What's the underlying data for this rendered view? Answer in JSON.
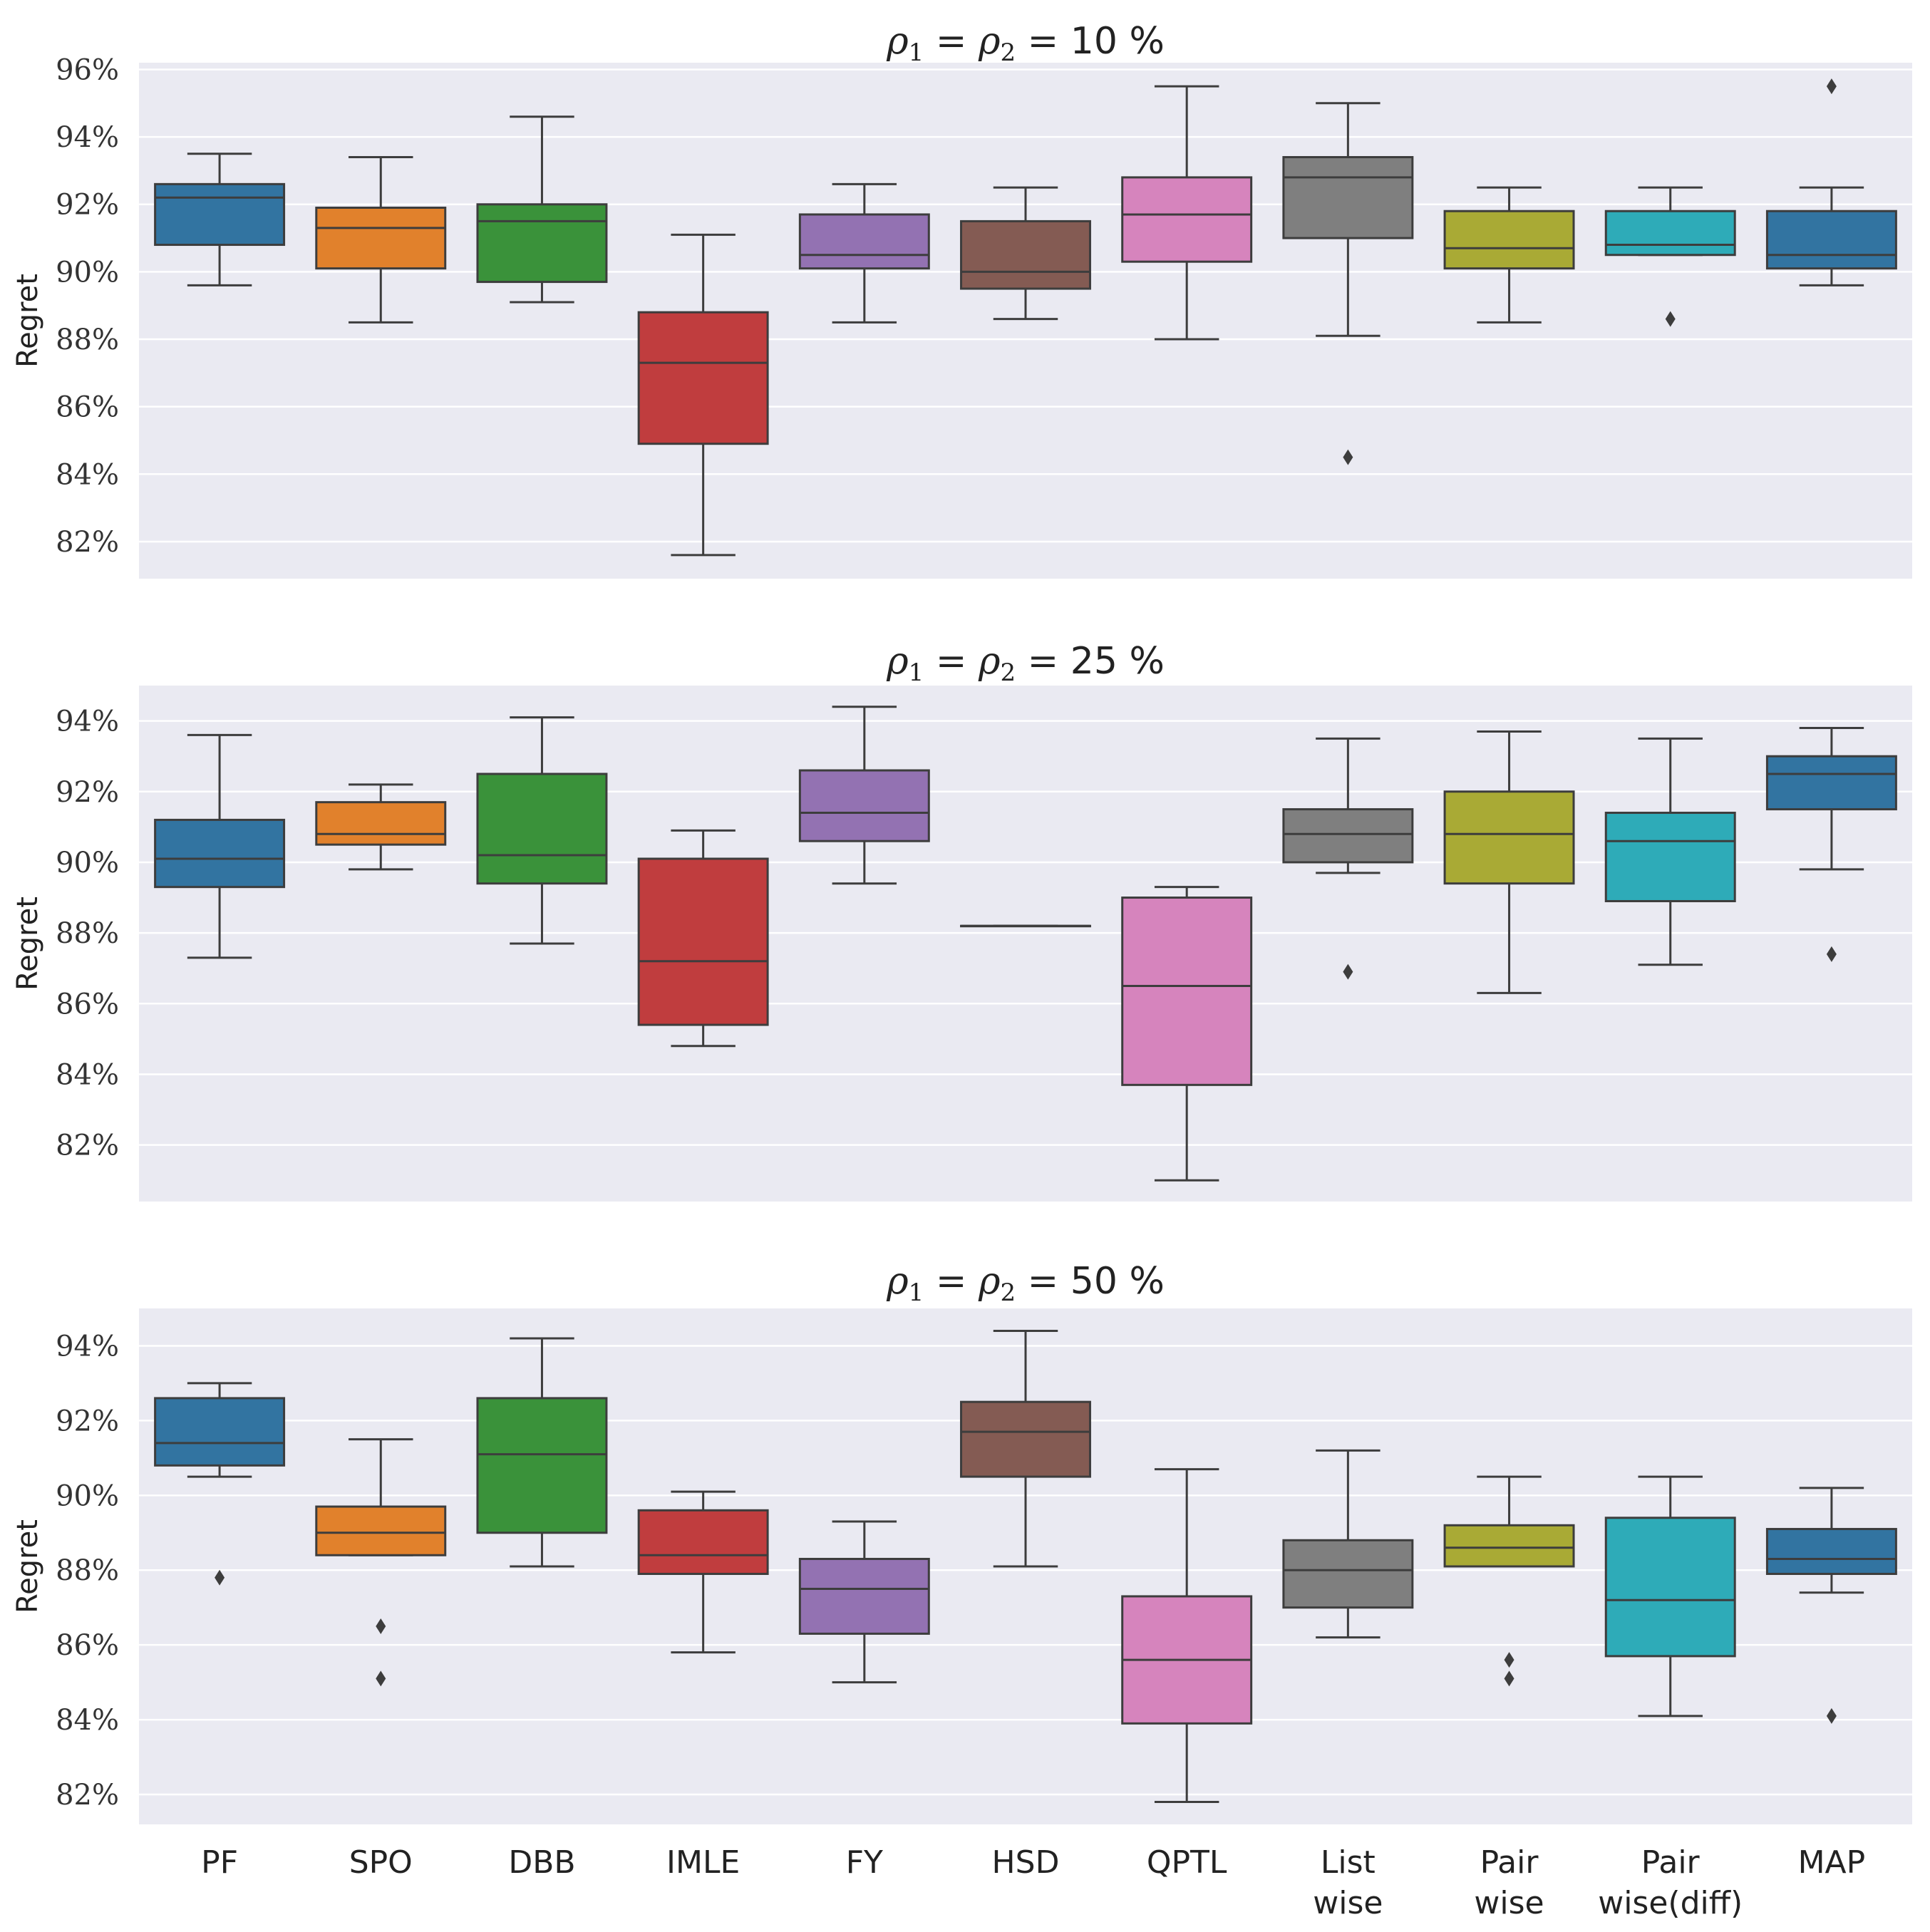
{
  "chart_data": [
    {
      "type": "box",
      "title": "ρ1 = ρ2 = 10 %",
      "title_parts": {
        "rho1": "ρ",
        "sub1": "1",
        "eq1": "=",
        "rho2": "ρ",
        "sub2": "2",
        "eq2": "=",
        "value": "10 %"
      },
      "ylabel": "Regret",
      "ylim": [
        80.9,
        96.2
      ],
      "yticks": [
        82,
        84,
        86,
        88,
        90,
        92,
        94,
        96
      ],
      "ytick_labels": [
        "82%",
        "84%",
        "86%",
        "88%",
        "90%",
        "92%",
        "94%",
        "96%"
      ],
      "grid": true,
      "boxes": [
        {
          "method": "PF",
          "color": "#3274a1",
          "min": 89.6,
          "q1": 90.8,
          "median": 92.2,
          "q3": 92.6,
          "max": 93.5,
          "outliers": []
        },
        {
          "method": "SPO",
          "color": "#e1812c",
          "min": 88.5,
          "q1": 90.1,
          "median": 91.3,
          "q3": 91.9,
          "max": 93.4,
          "outliers": []
        },
        {
          "method": "DBB",
          "color": "#3a923a",
          "min": 89.1,
          "q1": 89.7,
          "median": 91.5,
          "q3": 92.0,
          "max": 94.6,
          "outliers": []
        },
        {
          "method": "IMLE",
          "color": "#c03d3e",
          "min": 81.6,
          "q1": 84.9,
          "median": 87.3,
          "q3": 88.8,
          "max": 91.1,
          "outliers": []
        },
        {
          "method": "FY",
          "color": "#9372b2",
          "min": 88.5,
          "q1": 90.1,
          "median": 90.5,
          "q3": 91.7,
          "max": 92.6,
          "outliers": []
        },
        {
          "method": "HSD",
          "color": "#845b53",
          "min": 88.6,
          "q1": 89.5,
          "median": 90.0,
          "q3": 91.5,
          "max": 92.5,
          "outliers": []
        },
        {
          "method": "QPTL",
          "color": "#d684bd",
          "min": 88.0,
          "q1": 90.3,
          "median": 91.7,
          "q3": 92.8,
          "max": 95.5,
          "outliers": []
        },
        {
          "method": "Listwise",
          "color": "#7f7f7f",
          "min": 88.1,
          "q1": 91.0,
          "median": 92.8,
          "q3": 93.4,
          "max": 95.0,
          "outliers": [
            84.5
          ]
        },
        {
          "method": "Pairwise",
          "color": "#a9aa35",
          "min": 88.5,
          "q1": 90.1,
          "median": 90.7,
          "q3": 91.8,
          "max": 92.5,
          "outliers": []
        },
        {
          "method": "Pairwise(diff)",
          "color": "#2eabb8",
          "min": 90.5,
          "q1": 90.5,
          "median": 90.8,
          "q3": 91.8,
          "max": 92.5,
          "outliers": [
            88.6
          ]
        },
        {
          "method": "MAP",
          "color": "#3274a1",
          "min": 89.6,
          "q1": 90.1,
          "median": 90.5,
          "q3": 91.8,
          "max": 92.5,
          "outliers": [
            95.5
          ]
        }
      ]
    },
    {
      "type": "box",
      "title": "ρ1 = ρ2 = 25 %",
      "title_parts": {
        "rho1": "ρ",
        "sub1": "1",
        "eq1": "=",
        "rho2": "ρ",
        "sub2": "2",
        "eq2": "=",
        "value": "25 %"
      },
      "ylabel": "Regret",
      "ylim": [
        80.4,
        95.0
      ],
      "yticks": [
        82,
        84,
        86,
        88,
        90,
        92,
        94
      ],
      "ytick_labels": [
        "82%",
        "84%",
        "86%",
        "88%",
        "90%",
        "92%",
        "94%"
      ],
      "grid": true,
      "boxes": [
        {
          "method": "PF",
          "color": "#3274a1",
          "min": 87.3,
          "q1": 89.3,
          "median": 90.1,
          "q3": 91.2,
          "max": 93.6,
          "outliers": []
        },
        {
          "method": "SPO",
          "color": "#e1812c",
          "min": 89.8,
          "q1": 90.5,
          "median": 90.8,
          "q3": 91.7,
          "max": 92.2,
          "outliers": []
        },
        {
          "method": "DBB",
          "color": "#3a923a",
          "min": 87.7,
          "q1": 89.4,
          "median": 90.2,
          "q3": 92.5,
          "max": 94.1,
          "outliers": []
        },
        {
          "method": "IMLE",
          "color": "#c03d3e",
          "min": 84.8,
          "q1": 85.4,
          "median": 87.2,
          "q3": 90.1,
          "max": 90.9,
          "outliers": []
        },
        {
          "method": "FY",
          "color": "#9372b2",
          "min": 89.4,
          "q1": 90.6,
          "median": 91.4,
          "q3": 92.6,
          "max": 94.4,
          "outliers": []
        },
        {
          "method": "HSD",
          "color": "#845b53",
          "min": 88.2,
          "q1": 88.2,
          "median": 88.2,
          "q3": 88.2,
          "max": 88.2,
          "outliers": []
        },
        {
          "method": "QPTL",
          "color": "#d684bd",
          "min": 81.0,
          "q1": 83.7,
          "median": 86.5,
          "q3": 89.0,
          "max": 89.3,
          "outliers": []
        },
        {
          "method": "Listwise",
          "color": "#7f7f7f",
          "min": 89.7,
          "q1": 90.0,
          "median": 90.8,
          "q3": 91.5,
          "max": 93.5,
          "outliers": [
            86.9
          ]
        },
        {
          "method": "Pairwise",
          "color": "#a9aa35",
          "min": 86.3,
          "q1": 89.4,
          "median": 90.8,
          "q3": 92.0,
          "max": 93.7,
          "outliers": []
        },
        {
          "method": "Pairwise(diff)",
          "color": "#2eabb8",
          "min": 87.1,
          "q1": 88.9,
          "median": 90.6,
          "q3": 91.4,
          "max": 93.5,
          "outliers": []
        },
        {
          "method": "MAP",
          "color": "#3274a1",
          "min": 89.8,
          "q1": 91.5,
          "median": 92.5,
          "q3": 93.0,
          "max": 93.8,
          "outliers": [
            87.4
          ]
        }
      ]
    },
    {
      "type": "box",
      "title": "ρ1 = ρ2 = 50 %",
      "title_parts": {
        "rho1": "ρ",
        "sub1": "1",
        "eq1": "=",
        "rho2": "ρ",
        "sub2": "2",
        "eq2": "=",
        "value": "50 %"
      },
      "ylabel": "Regret",
      "ylim": [
        81.2,
        95.0
      ],
      "yticks": [
        82,
        84,
        86,
        88,
        90,
        92,
        94
      ],
      "ytick_labels": [
        "82%",
        "84%",
        "86%",
        "88%",
        "90%",
        "92%",
        "94%"
      ],
      "grid": true,
      "boxes": [
        {
          "method": "PF",
          "color": "#3274a1",
          "min": 90.5,
          "q1": 90.8,
          "median": 91.4,
          "q3": 92.6,
          "max": 93.0,
          "outliers": [
            87.8
          ]
        },
        {
          "method": "SPO",
          "color": "#e1812c",
          "min": 88.4,
          "q1": 88.4,
          "median": 89.0,
          "q3": 89.7,
          "max": 91.5,
          "outliers": [
            86.5,
            85.1
          ]
        },
        {
          "method": "DBB",
          "color": "#3a923a",
          "min": 88.1,
          "q1": 89.0,
          "median": 91.1,
          "q3": 92.6,
          "max": 94.2,
          "outliers": []
        },
        {
          "method": "IMLE",
          "color": "#c03d3e",
          "min": 85.8,
          "q1": 87.9,
          "median": 88.4,
          "q3": 89.6,
          "max": 90.1,
          "outliers": []
        },
        {
          "method": "FY",
          "color": "#9372b2",
          "min": 85.0,
          "q1": 86.3,
          "median": 87.5,
          "q3": 88.3,
          "max": 89.3,
          "outliers": []
        },
        {
          "method": "HSD",
          "color": "#845b53",
          "min": 88.1,
          "q1": 90.5,
          "median": 91.7,
          "q3": 92.5,
          "max": 94.4,
          "outliers": []
        },
        {
          "method": "QPTL",
          "color": "#d684bd",
          "min": 81.8,
          "q1": 83.9,
          "median": 85.6,
          "q3": 87.3,
          "max": 90.7,
          "outliers": []
        },
        {
          "method": "Listwise",
          "color": "#7f7f7f",
          "min": 86.2,
          "q1": 87.0,
          "median": 88.0,
          "q3": 88.8,
          "max": 91.2,
          "outliers": []
        },
        {
          "method": "Pairwise",
          "color": "#a9aa35",
          "min": 88.1,
          "q1": 88.1,
          "median": 88.6,
          "q3": 89.2,
          "max": 90.5,
          "outliers": [
            85.6,
            85.1
          ]
        },
        {
          "method": "Pairwise(diff)",
          "color": "#2eabb8",
          "min": 84.1,
          "q1": 85.7,
          "median": 87.2,
          "q3": 89.4,
          "max": 90.5,
          "outliers": []
        },
        {
          "method": "MAP",
          "color": "#3274a1",
          "min": 87.4,
          "q1": 87.9,
          "median": 88.3,
          "q3": 89.1,
          "max": 90.2,
          "outliers": [
            84.1
          ]
        }
      ]
    }
  ],
  "x_axis": {
    "labels": [
      {
        "line1": "PF",
        "line2": ""
      },
      {
        "line1": "SPO",
        "line2": ""
      },
      {
        "line1": "DBB",
        "line2": ""
      },
      {
        "line1": "IMLE",
        "line2": ""
      },
      {
        "line1": "FY",
        "line2": ""
      },
      {
        "line1": "HSD",
        "line2": ""
      },
      {
        "line1": "QPTL",
        "line2": ""
      },
      {
        "line1": "List",
        "line2": "wise"
      },
      {
        "line1": "Pair",
        "line2": "wise"
      },
      {
        "line1": "Pair",
        "line2": "wise(diff)"
      },
      {
        "line1": "MAP",
        "line2": ""
      }
    ]
  },
  "colors": {
    "panel_bg": "#eaeaf2",
    "grid": "#ffffff",
    "line": "#3d3d3d"
  }
}
